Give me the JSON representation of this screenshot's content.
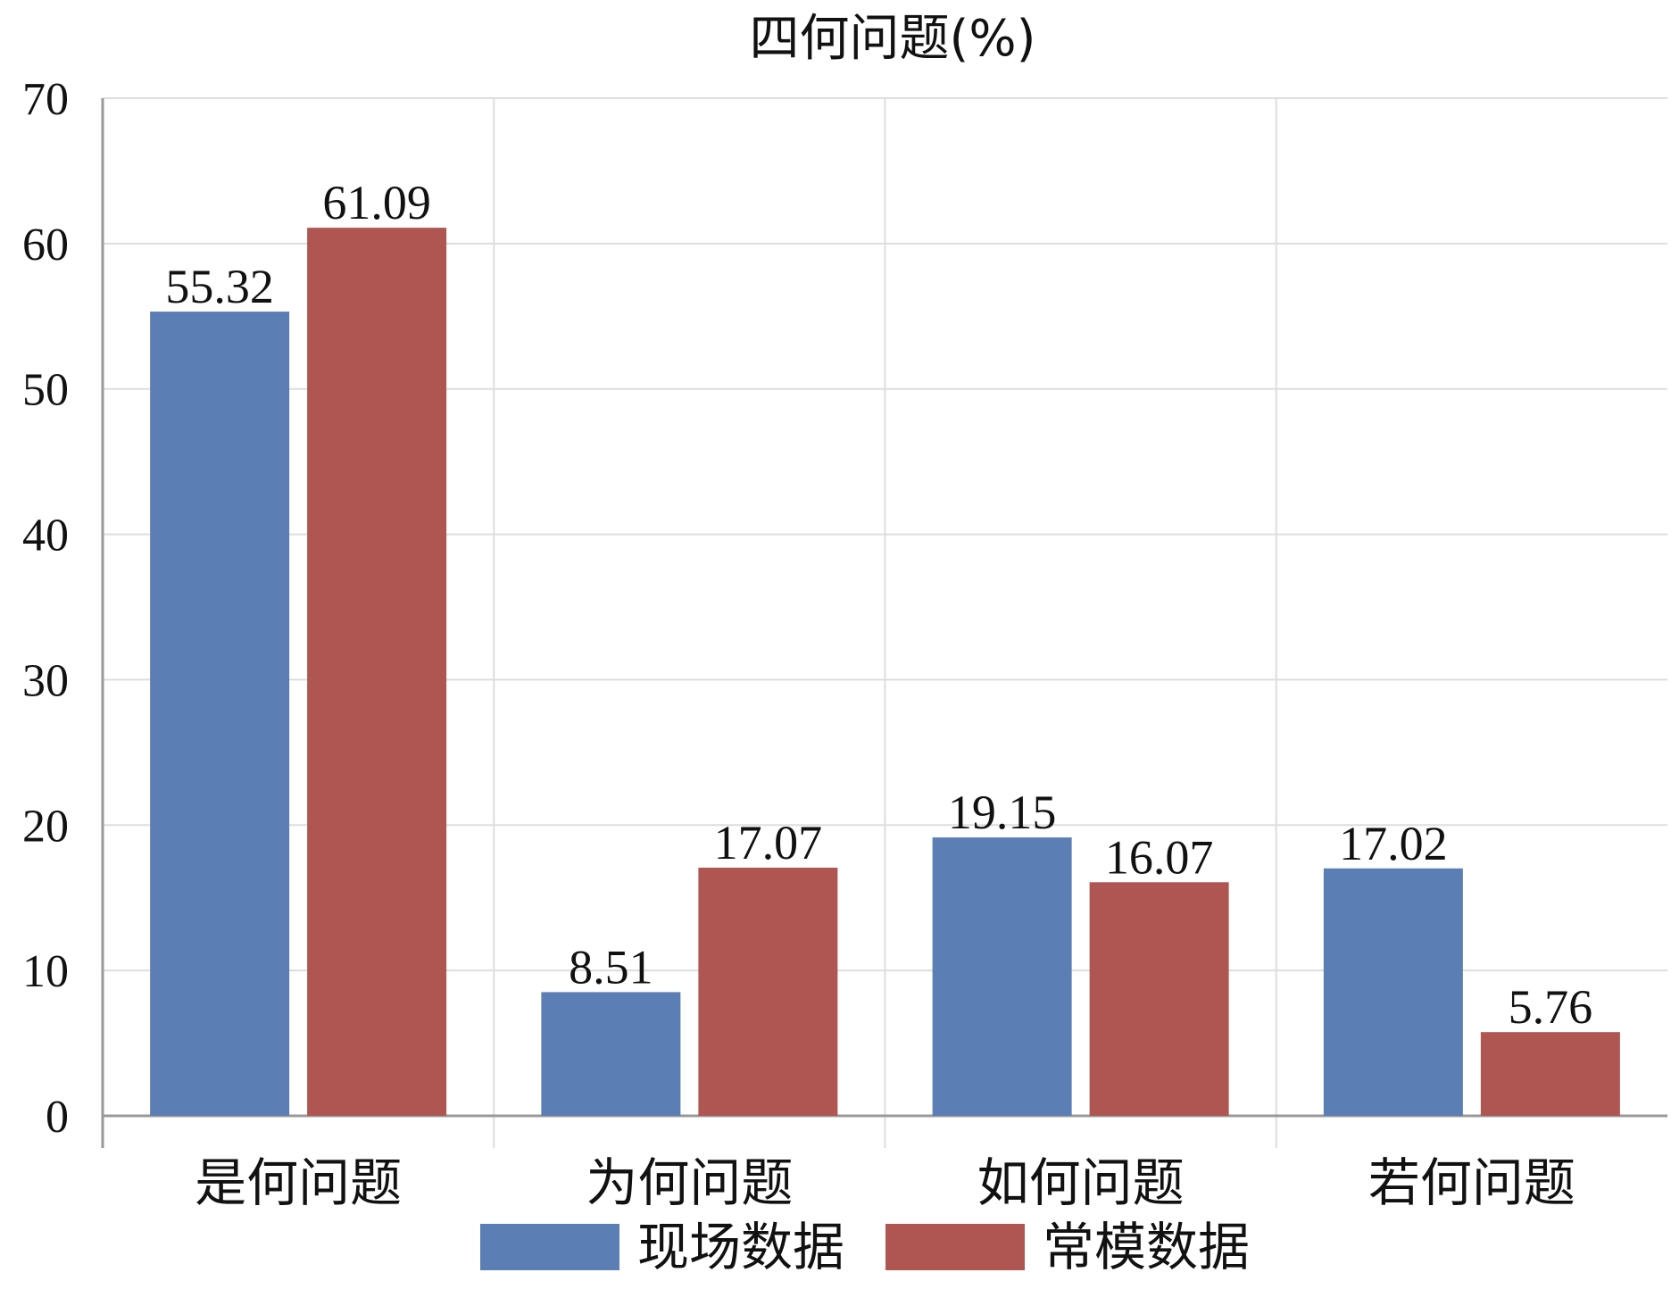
{
  "chart_data": {
    "type": "bar",
    "title": "四何问题(%)",
    "categories": [
      "是何问题",
      "为何问题",
      "如何问题",
      "若何问题"
    ],
    "series": [
      {
        "name": "现场数据",
        "values": [
          55.32,
          8.51,
          19.15,
          17.02
        ],
        "color": "#5b7fb5"
      },
      {
        "name": "常模数据",
        "values": [
          61.09,
          17.07,
          16.07,
          5.76
        ],
        "color": "#b05652"
      }
    ],
    "data_labels": [
      [
        "55.32",
        "8.51",
        "19.15",
        "17.02"
      ],
      [
        "61.09",
        "17.07",
        "16.07",
        "5.76"
      ]
    ],
    "ylim": [
      0,
      70
    ],
    "yticks": [
      "0",
      "10",
      "20",
      "30",
      "40",
      "50",
      "60",
      "70"
    ],
    "xlabel": "",
    "ylabel": "",
    "grid": true,
    "legend_position": "bottom-center"
  }
}
